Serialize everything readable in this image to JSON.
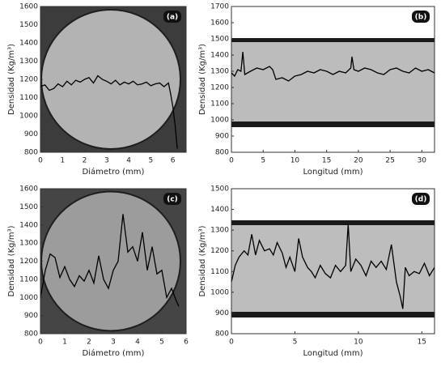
{
  "chart_data": [
    {
      "type": "line",
      "label": "(a)",
      "xlabel": "Diámetro (mm)",
      "ylabel": "Densidad (Kg/m³)",
      "color": "#000000",
      "xlim": [
        0,
        6.6
      ],
      "xticks": [
        0,
        1,
        2,
        3,
        4,
        5,
        6
      ],
      "ylim": [
        800,
        1600
      ],
      "yticks": [
        800,
        900,
        1000,
        1100,
        1200,
        1300,
        1400,
        1500,
        1600
      ],
      "x": [
        0,
        0.2,
        0.4,
        0.6,
        0.8,
        1.0,
        1.2,
        1.4,
        1.6,
        1.8,
        2.0,
        2.2,
        2.4,
        2.6,
        2.8,
        3.0,
        3.2,
        3.4,
        3.6,
        3.8,
        4.0,
        4.2,
        4.4,
        4.6,
        4.8,
        5.0,
        5.2,
        5.4,
        5.6,
        5.8,
        5.9,
        6.0,
        6.1,
        6.2
      ],
      "values": [
        1160,
        1170,
        1140,
        1150,
        1175,
        1160,
        1190,
        1170,
        1195,
        1185,
        1200,
        1210,
        1180,
        1220,
        1200,
        1190,
        1175,
        1195,
        1170,
        1185,
        1175,
        1190,
        1170,
        1175,
        1185,
        1165,
        1175,
        1180,
        1160,
        1180,
        1120,
        1050,
        950,
        820
      ]
    },
    {
      "type": "line",
      "label": "(b)",
      "xlabel": "Longitud (mm)",
      "ylabel": "Densidad (Kg/m³)",
      "color": "#000000",
      "xlim": [
        0,
        32
      ],
      "xticks": [
        0,
        5,
        10,
        15,
        20,
        25,
        30
      ],
      "ylim": [
        800,
        1700
      ],
      "yticks": [
        800,
        900,
        1000,
        1100,
        1200,
        1300,
        1400,
        1500,
        1600,
        1700
      ],
      "x": [
        0,
        0.5,
        1,
        1.5,
        1.8,
        2.1,
        3,
        4,
        5,
        6,
        6.5,
        7,
        8,
        9,
        10,
        11,
        12,
        13,
        14,
        15,
        16,
        17,
        18,
        18.8,
        19,
        19.3,
        20,
        21,
        22,
        23,
        24,
        25,
        26,
        27,
        28,
        29,
        30,
        31,
        32
      ],
      "values": [
        1290,
        1270,
        1310,
        1300,
        1420,
        1280,
        1300,
        1320,
        1310,
        1330,
        1310,
        1250,
        1260,
        1240,
        1270,
        1280,
        1300,
        1290,
        1310,
        1300,
        1280,
        1300,
        1290,
        1320,
        1390,
        1310,
        1300,
        1320,
        1310,
        1290,
        1280,
        1310,
        1320,
        1300,
        1290,
        1320,
        1300,
        1310,
        1290
      ]
    },
    {
      "type": "line",
      "label": "(c)",
      "xlabel": "Diámetro (mm)",
      "ylabel": "Densidad (Kg/m³)",
      "color": "#000000",
      "xlim": [
        0,
        6
      ],
      "xticks": [
        0,
        1,
        2,
        3,
        4,
        5,
        6
      ],
      "ylim": [
        800,
        1600
      ],
      "yticks": [
        800,
        900,
        1000,
        1100,
        1200,
        1300,
        1400,
        1500,
        1600
      ],
      "x": [
        0,
        0.2,
        0.4,
        0.6,
        0.8,
        1.0,
        1.2,
        1.4,
        1.6,
        1.8,
        2.0,
        2.2,
        2.4,
        2.6,
        2.8,
        3.0,
        3.2,
        3.4,
        3.6,
        3.8,
        4.0,
        4.2,
        4.4,
        4.6,
        4.8,
        5.0,
        5.2,
        5.4,
        5.6,
        5.7
      ],
      "values": [
        1000,
        1150,
        1240,
        1220,
        1110,
        1170,
        1100,
        1060,
        1120,
        1090,
        1150,
        1080,
        1230,
        1100,
        1050,
        1150,
        1200,
        1460,
        1250,
        1280,
        1200,
        1360,
        1150,
        1280,
        1130,
        1150,
        1000,
        1050,
        980,
        950
      ]
    },
    {
      "type": "line",
      "label": "(d)",
      "xlabel": "Longitud (mm)",
      "ylabel": "Densidad (Kg/m³)",
      "color": "#000000",
      "xlim": [
        0,
        16
      ],
      "xticks": [
        0,
        5,
        10,
        15
      ],
      "ylim": [
        800,
        1500
      ],
      "yticks": [
        800,
        900,
        1000,
        1100,
        1200,
        1300,
        1400,
        1500
      ],
      "x": [
        0,
        0.3,
        0.6,
        1,
        1.3,
        1.6,
        1.9,
        2.2,
        2.6,
        3,
        3.3,
        3.6,
        4,
        4.3,
        4.6,
        5,
        5.3,
        5.6,
        6,
        6.3,
        6.6,
        7,
        7.4,
        7.8,
        8.2,
        8.6,
        9,
        9.2,
        9.4,
        9.8,
        10.2,
        10.6,
        11,
        11.4,
        11.8,
        12.2,
        12.6,
        13,
        13.3,
        13.5,
        13.7,
        14,
        14.4,
        14.8,
        15.2,
        15.6,
        16
      ],
      "values": [
        1050,
        1130,
        1170,
        1200,
        1180,
        1280,
        1180,
        1250,
        1200,
        1210,
        1180,
        1240,
        1190,
        1120,
        1170,
        1100,
        1260,
        1170,
        1120,
        1100,
        1070,
        1130,
        1090,
        1070,
        1130,
        1100,
        1130,
        1330,
        1100,
        1160,
        1130,
        1080,
        1150,
        1120,
        1150,
        1110,
        1230,
        1050,
        980,
        920,
        1120,
        1080,
        1100,
        1090,
        1140,
        1080,
        1120
      ]
    }
  ]
}
